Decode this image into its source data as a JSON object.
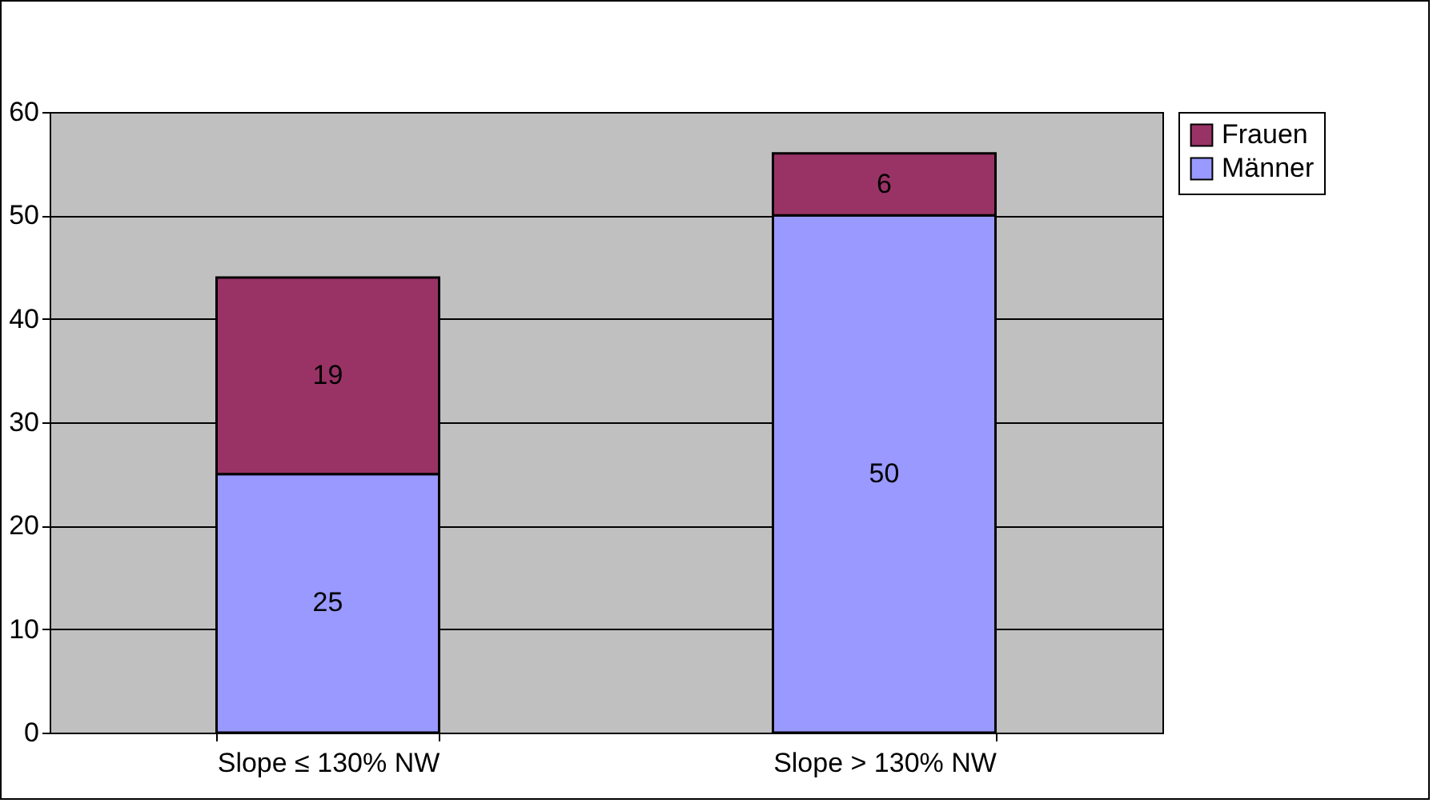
{
  "chart_data": {
    "type": "bar",
    "stacked": true,
    "categories": [
      "Slope ≤ 130% NW",
      "Slope > 130% NW"
    ],
    "series": [
      {
        "name": "Männer",
        "color": "#9999ff",
        "values": [
          25,
          50
        ]
      },
      {
        "name": "Frauen",
        "color": "#993366",
        "values": [
          19,
          6
        ]
      }
    ],
    "ylim": [
      0,
      60
    ],
    "yticks": [
      0,
      10,
      20,
      30,
      40,
      50,
      60
    ],
    "grid": "y",
    "legend": "right",
    "data_labels": true
  }
}
